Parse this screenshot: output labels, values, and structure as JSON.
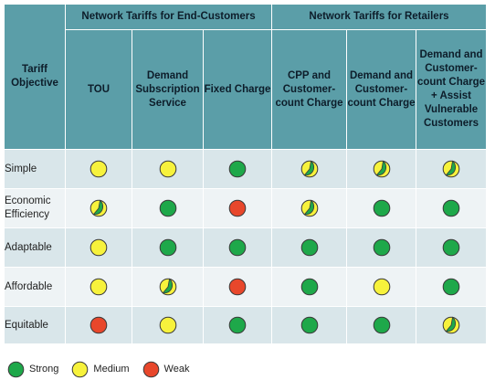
{
  "header": {
    "objective_label": "Tariff Objective",
    "group_end_customers": "Network Tariffs for End-Customers",
    "group_retailers": "Network Tariffs for Retailers",
    "columns": [
      "TOU",
      "Demand Subscription Service",
      "Fixed Charge",
      "CPP and Customer-count Charge",
      "Demand and Customer-count Charge",
      "Demand and Customer-count Charge + Assist Vulnerable Customers"
    ]
  },
  "rows": [
    {
      "label": "Simple",
      "ratings": [
        "medium",
        "medium",
        "strong",
        "medium-strong",
        "medium-strong",
        "medium-strong"
      ]
    },
    {
      "label": "Economic Efficiency",
      "ratings": [
        "medium-strong",
        "strong",
        "weak",
        "medium-strong",
        "strong",
        "strong"
      ]
    },
    {
      "label": "Adaptable",
      "ratings": [
        "medium",
        "strong",
        "strong",
        "strong",
        "strong",
        "strong"
      ]
    },
    {
      "label": "Affordable",
      "ratings": [
        "medium",
        "medium-strong",
        "weak",
        "strong",
        "medium",
        "strong"
      ]
    },
    {
      "label": "Equitable",
      "ratings": [
        "weak",
        "medium",
        "strong",
        "strong",
        "strong",
        "medium-strong"
      ]
    }
  ],
  "legend": [
    {
      "key": "strong",
      "label": "Strong"
    },
    {
      "key": "medium",
      "label": "Medium"
    },
    {
      "key": "weak",
      "label": "Weak"
    }
  ],
  "colors": {
    "strong": "#1ea84a",
    "medium": "#f7f23c",
    "weak": "#e8472b",
    "header_bg": "#5b9ea8",
    "row_bg_a": "#d9e6ea",
    "row_bg_b": "#eef3f5"
  }
}
